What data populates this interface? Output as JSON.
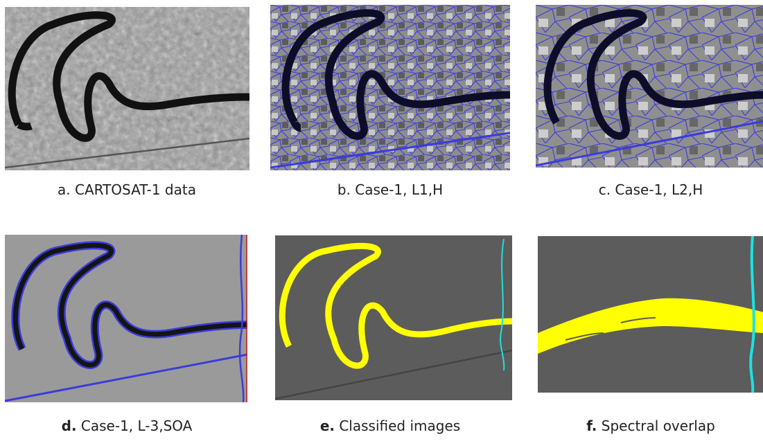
{
  "panels": [
    {
      "id": "a",
      "caption_text": "a. CARTOSAT-1 data",
      "bold_prefix": ""
    },
    {
      "id": "b",
      "caption_text": "b. Case-1, L1,H",
      "bold_prefix": ""
    },
    {
      "id": "c",
      "caption_text": "c. Case-1, L2,H",
      "bold_prefix": ""
    },
    {
      "id": "d",
      "bold_prefix": "d.",
      "caption_text": " Case-1, L-3,SOA"
    },
    {
      "id": "e",
      "bold_prefix": "e.",
      "caption_text": " Classified images"
    },
    {
      "id": "f",
      "bold_prefix": "f.",
      "caption_text": " Spectral overlap"
    }
  ],
  "colors": {
    "river_dark": "#111111",
    "segment_line": "#3b3bdc",
    "classified_river": "#ffff00",
    "classified_bg": "#5c5c5c",
    "overlap_line": "#19e3e3",
    "level3_bg": "#9a9a9a"
  }
}
